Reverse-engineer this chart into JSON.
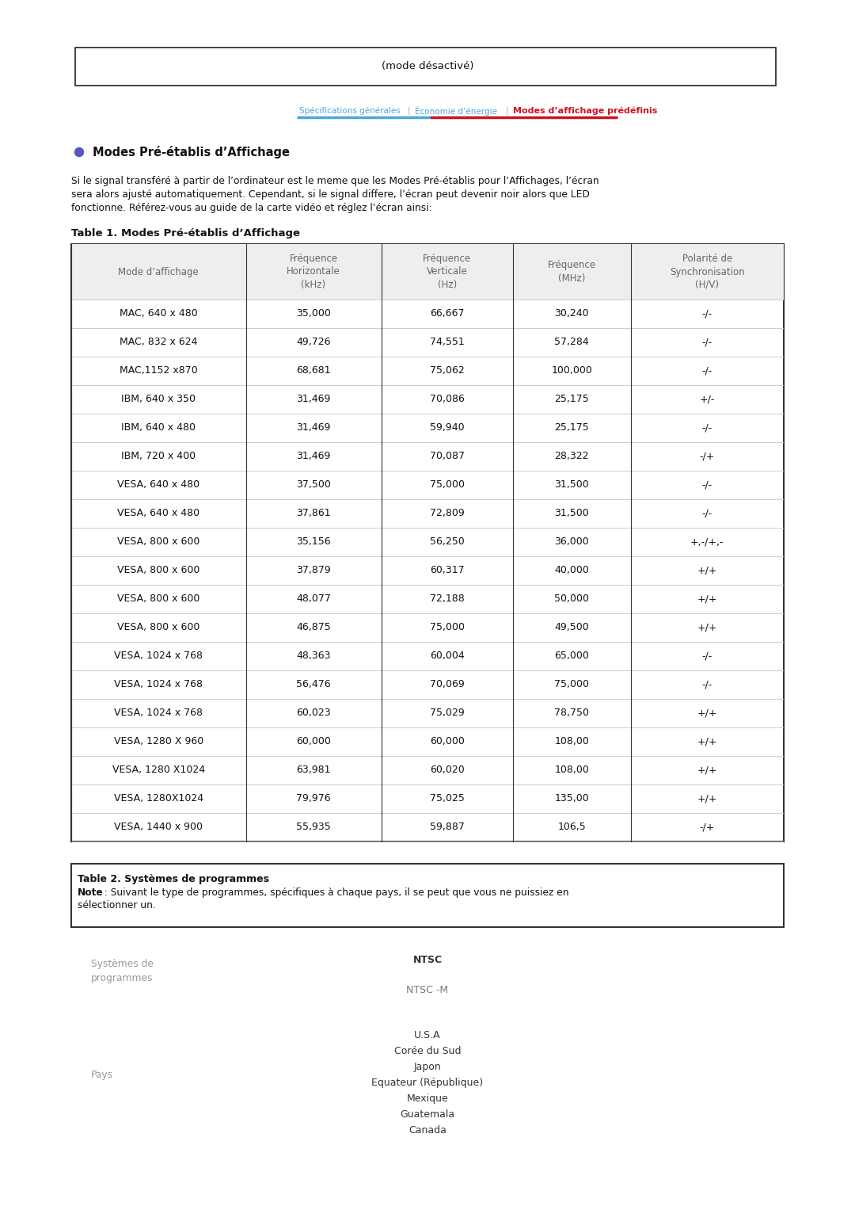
{
  "page_bg": "#ffffff",
  "top_box_text": "(mode désactivé)",
  "nav_text1": "Spécifications générales",
  "nav_text2": "Économie d’énergie",
  "nav_text3": "Modes d’affichage prédéfinis",
  "section_bullet_color": "#5555bb",
  "section_title": "Modes Pré-établis d’Affichage",
  "body_text_line1": "Si le signal transféré à partir de l’ordinateur est le meme que les Modes Pré-établis pour l’Affichages, l’écran",
  "body_text_line2": "sera alors ajusté automatiquement. Cependant, si le signal differe, l’écran peut devenir noir alors que LED",
  "body_text_line3": "fonctionne. Référez-vous au guide de la carte vidéo et réglez l’écran ainsi:",
  "table1_title": "Table 1. Modes Pré-établis d’Affichage",
  "table1_headers": [
    "Mode d’affichage",
    "Fréquence\nHorizontale\n(kHz)",
    "Fréquence\nVerticale\n(Hz)",
    "Fréquence\n(MHz)",
    "Polarité de\nSynchronisation\n(H/V)"
  ],
  "table1_rows": [
    [
      "MAC, 640 x 480",
      "35,000",
      "66,667",
      "30,240",
      "-/-"
    ],
    [
      "MAC, 832 x 624",
      "49,726",
      "74,551",
      "57,284",
      "-/-"
    ],
    [
      "MAC,1152 x870",
      "68,681",
      "75,062",
      "100,000",
      "-/-"
    ],
    [
      "IBM, 640 x 350",
      "31,469",
      "70,086",
      "25,175",
      "+/-"
    ],
    [
      "IBM, 640 x 480",
      "31,469",
      "59,940",
      "25,175",
      "-/-"
    ],
    [
      "IBM, 720 x 400",
      "31,469",
      "70,087",
      "28,322",
      "-/+"
    ],
    [
      "VESA, 640 x 480",
      "37,500",
      "75,000",
      "31,500",
      "-/-"
    ],
    [
      "VESA, 640 x 480",
      "37,861",
      "72,809",
      "31,500",
      "-/-"
    ],
    [
      "VESA, 800 x 600",
      "35,156",
      "56,250",
      "36,000",
      "+,-/+,-"
    ],
    [
      "VESA, 800 x 600",
      "37,879",
      "60,317",
      "40,000",
      "+/+"
    ],
    [
      "VESA, 800 x 600",
      "48,077",
      "72,188",
      "50,000",
      "+/+"
    ],
    [
      "VESA, 800 x 600",
      "46,875",
      "75,000",
      "49,500",
      "+/+"
    ],
    [
      "VESA, 1024 x 768",
      "48,363",
      "60,004",
      "65,000",
      "-/-"
    ],
    [
      "VESA, 1024 x 768",
      "56,476",
      "70,069",
      "75,000",
      "-/-"
    ],
    [
      "VESA, 1024 x 768",
      "60,023",
      "75,029",
      "78,750",
      "+/+"
    ],
    [
      "VESA, 1280 X 960",
      "60,000",
      "60,000",
      "108,00",
      "+/+"
    ],
    [
      "VESA, 1280 X1024",
      "63,981",
      "60,020",
      "108,00",
      "+/+"
    ],
    [
      "VESA, 1280X1024",
      "79,976",
      "75,025",
      "135,00",
      "+/+"
    ],
    [
      "VESA, 1440 x 900",
      "55,935",
      "59,887",
      "106,5",
      "-/+"
    ]
  ],
  "table2_title": "Table 2. Systèmes de programmes",
  "table2_note_bold": "Note",
  "table2_note_rest": " : Suivant le type de programmes, spécifiques à chaque pays, il se peut que vous ne puissiez en\nsélectionner un.",
  "systems_label": "Systèmes de\nprogrammes",
  "ntsc_label": "NTSC",
  "ntsc_m_label": "NTSC -M",
  "pays_label": "Pays",
  "pays_values": [
    "U.S.A",
    "Corée du Sud",
    "Japon",
    "Equateur (République)",
    "Mexique",
    "Guatemala",
    "Canada"
  ]
}
